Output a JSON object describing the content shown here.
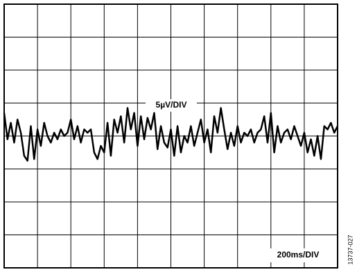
{
  "chart_data": {
    "type": "line",
    "annotations": {
      "vertical_scale": "5µV/DIV",
      "horizontal_scale": "200ms/DIV",
      "figure_id": "13737-027"
    },
    "color": "#000000",
    "xlim": [
      0,
      10
    ],
    "ylim": [
      -4,
      4
    ],
    "xticks": [
      0,
      1,
      2,
      3,
      4,
      5,
      6,
      7,
      8,
      9,
      10
    ],
    "yticks": [
      -4,
      -3,
      -2,
      -1,
      0,
      1,
      2,
      3,
      4
    ],
    "grid": true,
    "x": [
      0,
      0.1,
      0.2,
      0.3,
      0.4,
      0.5,
      0.6,
      0.7,
      0.8,
      0.9,
      1,
      1.1,
      1.2,
      1.3,
      1.4,
      1.5,
      1.6,
      1.7,
      1.8,
      1.9,
      2,
      2.1,
      2.2,
      2.3,
      2.4,
      2.5,
      2.6,
      2.7,
      2.8,
      2.9,
      3,
      3.1,
      3.2,
      3.3,
      3.4,
      3.5,
      3.6,
      3.7,
      3.8,
      3.9,
      4,
      4.1,
      4.2,
      4.3,
      4.4,
      4.5,
      4.6,
      4.7,
      4.8,
      4.9,
      5,
      5.1,
      5.2,
      5.3,
      5.4,
      5.5,
      5.6,
      5.7,
      5.8,
      5.9,
      6,
      6.1,
      6.2,
      6.3,
      6.4,
      6.5,
      6.6,
      6.7,
      6.8,
      6.9,
      7,
      7.1,
      7.2,
      7.3,
      7.4,
      7.5,
      7.6,
      7.7,
      7.8,
      7.9,
      8,
      8.1,
      8.2,
      8.3,
      8.4,
      8.5,
      8.6,
      8.7,
      8.8,
      8.9,
      9,
      9.1,
      9.2,
      9.3,
      9.4,
      9.5,
      9.6,
      9.7,
      9.8,
      9.9,
      10
    ],
    "values": [
      0.7,
      -0.1,
      0.4,
      -0.2,
      0.5,
      0.1,
      -0.6,
      -0.75,
      0.3,
      -0.7,
      0.2,
      -0.3,
      0.4,
      0,
      -0.2,
      0.1,
      -0.1,
      0.2,
      0,
      0.1,
      0.5,
      -0.1,
      0.3,
      -0.2,
      0.2,
      0.1,
      0.2,
      -0.5,
      -0.7,
      -0.3,
      -0.5,
      0.4,
      -0.6,
      0.5,
      0.1,
      0.6,
      -0.2,
      0.85,
      0.2,
      0.7,
      -0.3,
      0.6,
      -0.1,
      0.55,
      0.2,
      0.7,
      -0.4,
      0.3,
      -0.2,
      -0.35,
      0.2,
      -0.6,
      0.3,
      -0.5,
      0,
      -0.2,
      0.3,
      -0.3,
      0.1,
      0.5,
      -0.2,
      0.2,
      -0.5,
      0.6,
      0.1,
      0.85,
      0.2,
      -0.4,
      0.1,
      -0.3,
      0.3,
      -0.2,
      0.1,
      0,
      0.2,
      -0.2,
      0.1,
      0.2,
      0.6,
      -0.2,
      0.7,
      -0.5,
      0.3,
      -0.2,
      0.1,
      0.2,
      -0.1,
      0.3,
      0,
      -0.3,
      0.1,
      -0.5,
      -0.1,
      -0.6,
      0,
      -0.7,
      0.3,
      0.2,
      0.4,
      0.1,
      0.3
    ]
  }
}
